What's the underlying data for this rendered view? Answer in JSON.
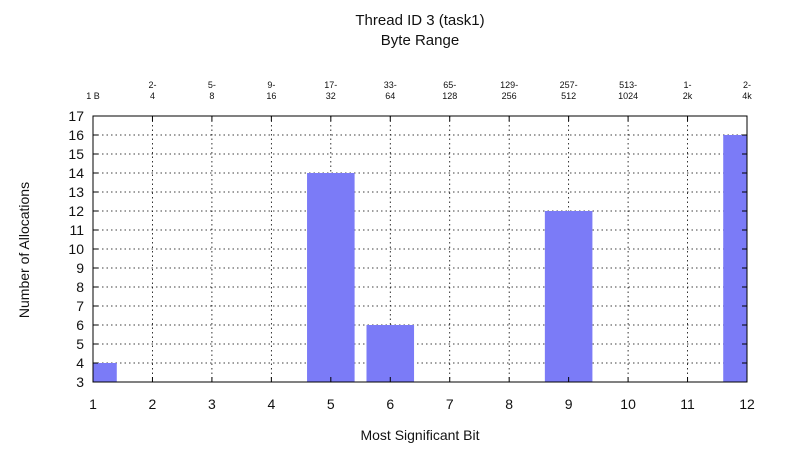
{
  "chart_data": {
    "type": "bar",
    "title": "Thread ID 3 (task1)",
    "subtitle": "Byte Range",
    "xlabel": "Most Significant Bit",
    "ylabel": "Number of Allocations",
    "xlim": [
      1,
      12
    ],
    "ylim": [
      3,
      17
    ],
    "x_ticks": [
      1,
      2,
      3,
      4,
      5,
      6,
      7,
      8,
      9,
      10,
      11,
      12
    ],
    "y_ticks": [
      3,
      4,
      5,
      6,
      7,
      8,
      9,
      10,
      11,
      12,
      13,
      14,
      15,
      16,
      17
    ],
    "top_axis_labels": [
      {
        "x": 1,
        "lines": [
          "1 B"
        ]
      },
      {
        "x": 2,
        "lines": [
          "2-",
          "4"
        ]
      },
      {
        "x": 3,
        "lines": [
          "5-",
          "8"
        ]
      },
      {
        "x": 4,
        "lines": [
          "9-",
          "16"
        ]
      },
      {
        "x": 5,
        "lines": [
          "17-",
          "32"
        ]
      },
      {
        "x": 6,
        "lines": [
          "33-",
          "64"
        ]
      },
      {
        "x": 7,
        "lines": [
          "65-",
          "128"
        ]
      },
      {
        "x": 8,
        "lines": [
          "129-",
          "256"
        ]
      },
      {
        "x": 9,
        "lines": [
          "257-",
          "512"
        ]
      },
      {
        "x": 10,
        "lines": [
          "513-",
          "1024"
        ]
      },
      {
        "x": 11,
        "lines": [
          "1-",
          "2k"
        ]
      },
      {
        "x": 12,
        "lines": [
          "2-",
          "4k"
        ]
      }
    ],
    "bars": [
      {
        "x": 1,
        "value": 4
      },
      {
        "x": 5,
        "value": 14
      },
      {
        "x": 6,
        "value": 6
      },
      {
        "x": 9,
        "value": 12
      },
      {
        "x": 12,
        "value": 16
      }
    ],
    "bar_width": 0.8,
    "bar_color": "#7b7bf7",
    "grid": true
  }
}
